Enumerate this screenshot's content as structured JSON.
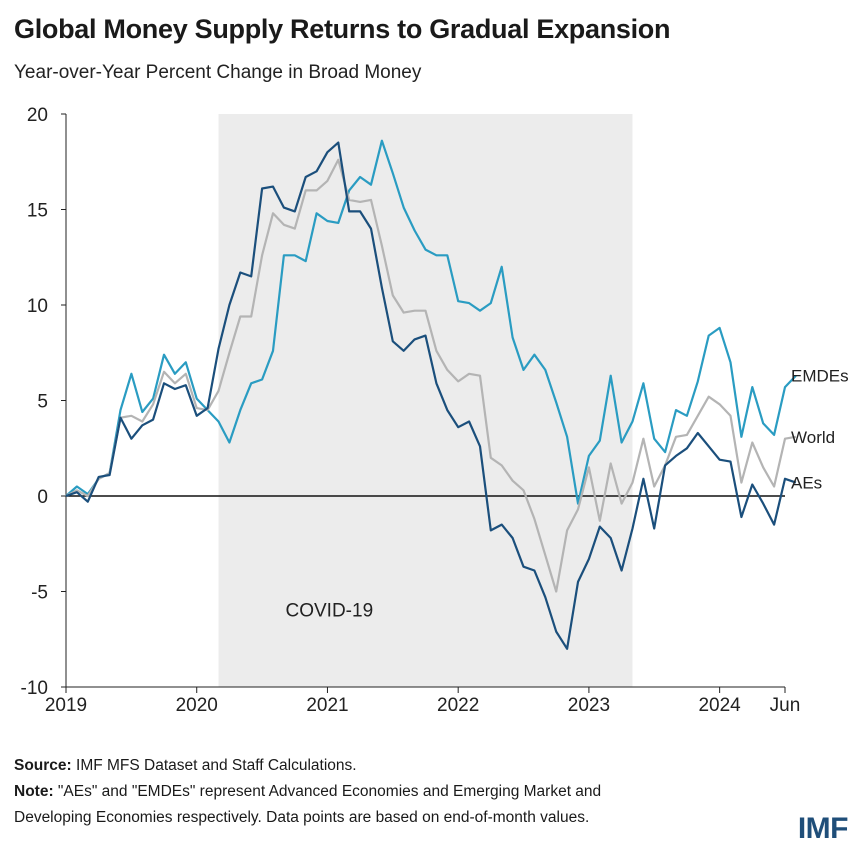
{
  "header": {
    "title": "Global Money Supply Returns to Gradual Expansion",
    "subtitle": "Year-over-Year Percent Change in Broad Money"
  },
  "chart_data": {
    "type": "line",
    "title": "Global Money Supply Returns to Gradual Expansion",
    "subtitle": "Year-over-Year Percent Change in Broad Money",
    "xlabel": "",
    "ylabel": "",
    "xlim": [
      2019.0,
      2024.5
    ],
    "ylim": [
      -10,
      20
    ],
    "yticks": [
      -10,
      -5,
      0,
      5,
      10,
      15,
      20
    ],
    "ytick_labels": [
      "-10",
      "-5",
      "0",
      "5",
      "10",
      "15",
      "20"
    ],
    "xticks": [
      {
        "value": 2019.0,
        "label": "2019"
      },
      {
        "value": 2020.0,
        "label": "2020"
      },
      {
        "value": 2021.0,
        "label": "2021"
      },
      {
        "value": 2022.0,
        "label": "2022"
      },
      {
        "value": 2023.0,
        "label": "2023"
      },
      {
        "value": 2024.0,
        "label": "2024"
      },
      {
        "value": 2024.5,
        "label": "Jun"
      }
    ],
    "grid": false,
    "shaded_region": {
      "start": 2020.167,
      "end": 2023.333,
      "label": "COVID-19",
      "color": "#ececec"
    },
    "series": [
      {
        "name": "EMDEs",
        "color": "#2a9cc2",
        "x_start": 2019.0,
        "step": 0.08333,
        "values": [
          0.0,
          0.5,
          0.1,
          0.9,
          1.2,
          4.5,
          6.4,
          4.4,
          5.1,
          7.4,
          6.4,
          7.0,
          5.1,
          4.5,
          3.9,
          2.8,
          4.5,
          5.9,
          6.1,
          7.6,
          12.6,
          12.6,
          12.3,
          14.8,
          14.4,
          14.3,
          16.0,
          16.7,
          16.3,
          18.6,
          16.9,
          15.1,
          13.9,
          12.9,
          12.6,
          12.6,
          10.2,
          10.1,
          9.7,
          10.1,
          12.0,
          8.3,
          6.6,
          7.4,
          6.6,
          4.9,
          3.1,
          -0.4,
          2.1,
          2.9,
          6.3,
          2.8,
          3.9,
          5.9,
          3.0,
          2.3,
          4.5,
          4.2,
          6.0,
          8.4,
          8.8,
          7.0,
          3.1,
          5.7,
          3.8,
          3.2,
          5.7,
          6.3
        ]
      },
      {
        "name": "World",
        "color": "#b4b4b4",
        "x_start": 2019.0,
        "step": 0.08333,
        "values": [
          0.0,
          0.3,
          0.0,
          0.9,
          1.2,
          4.1,
          4.2,
          3.9,
          4.8,
          6.5,
          5.9,
          6.4,
          4.6,
          4.5,
          5.5,
          7.5,
          9.4,
          9.4,
          12.6,
          14.8,
          14.2,
          14.0,
          16.0,
          16.0,
          16.5,
          17.6,
          15.5,
          15.4,
          15.5,
          13.1,
          10.5,
          9.6,
          9.7,
          9.7,
          7.6,
          6.6,
          6.0,
          6.4,
          6.3,
          2.0,
          1.6,
          0.8,
          0.3,
          -1.2,
          -3.1,
          -5.0,
          -1.8,
          -0.7,
          1.5,
          -1.3,
          1.7,
          -0.4,
          0.7,
          3.0,
          0.5,
          1.6,
          3.1,
          3.2,
          4.2,
          5.2,
          4.8,
          4.2,
          0.7,
          2.8,
          1.5,
          0.5,
          3.0,
          3.1
        ]
      },
      {
        "name": "AEs",
        "color": "#1b4f7c",
        "x_start": 2019.0,
        "step": 0.08333,
        "values": [
          0.0,
          0.2,
          -0.3,
          1.0,
          1.1,
          4.1,
          3.0,
          3.7,
          4.0,
          5.9,
          5.6,
          5.8,
          4.2,
          4.6,
          7.7,
          10.0,
          11.7,
          11.5,
          16.1,
          16.2,
          15.1,
          14.9,
          16.7,
          17.0,
          18.0,
          18.5,
          14.9,
          14.9,
          14.0,
          10.9,
          8.1,
          7.6,
          8.2,
          8.4,
          5.9,
          4.5,
          3.6,
          3.9,
          2.6,
          -1.8,
          -1.5,
          -2.2,
          -3.7,
          -3.9,
          -5.3,
          -7.1,
          -8.0,
          -4.5,
          -3.3,
          -1.6,
          -2.2,
          -3.9,
          -1.7,
          0.9,
          -1.7,
          1.6,
          2.1,
          2.5,
          3.3,
          2.6,
          1.9,
          1.8,
          -1.1,
          0.6,
          -0.4,
          -1.5,
          0.9,
          0.7
        ]
      }
    ]
  },
  "footnotes": {
    "source_label": "Source:",
    "source_text": " IMF MFS Dataset and Staff Calculations.",
    "note_label": "Note:",
    "note_line1": " \"AEs\" and \"EMDEs\" represent Advanced Economies and Emerging Market and",
    "note_line2": "Developing Economies respectively. Data points are based on end-of-month values."
  },
  "logo": {
    "text": "IMF"
  }
}
